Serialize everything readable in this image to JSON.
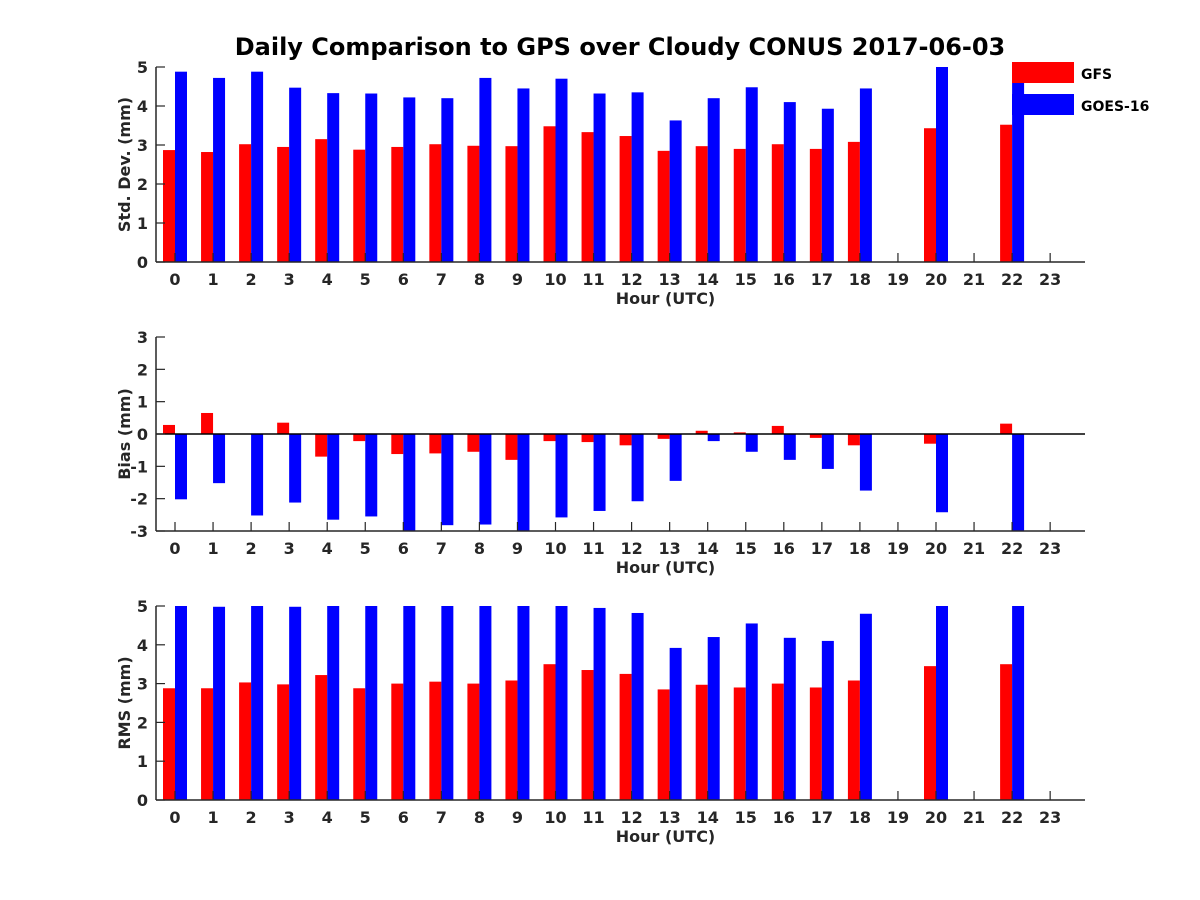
{
  "figure": {
    "title": "Daily Comparison to GPS over Cloudy CONUS 2017-06-03"
  },
  "legend": {
    "items": [
      {
        "label": "GFS",
        "color": "#ff0000"
      },
      {
        "label": "GOES-16",
        "color": "#0000ff"
      }
    ],
    "placement": "top-right"
  },
  "chart_data": [
    {
      "type": "bar",
      "ylabel": "Std. Dev. (mm)",
      "xlabel": "Hour (UTC)",
      "ylim": [
        0,
        5
      ],
      "yticks": [
        0,
        1,
        2,
        3,
        4,
        5
      ],
      "categories": [
        "0",
        "1",
        "2",
        "3",
        "4",
        "5",
        "6",
        "7",
        "8",
        "9",
        "10",
        "11",
        "12",
        "13",
        "14",
        "15",
        "16",
        "17",
        "18",
        "19",
        "20",
        "21",
        "22",
        "23"
      ],
      "grid": false,
      "series": [
        {
          "name": "GFS",
          "color": "#ff0000",
          "values": [
            2.87,
            2.82,
            3.02,
            2.95,
            3.15,
            2.88,
            2.95,
            3.02,
            2.98,
            2.97,
            3.48,
            3.33,
            3.23,
            2.85,
            2.97,
            2.9,
            3.02,
            2.9,
            3.08,
            null,
            3.43,
            null,
            3.52,
            null
          ]
        },
        {
          "name": "GOES-16",
          "color": "#0000ff",
          "values": [
            4.88,
            4.72,
            4.88,
            4.47,
            4.33,
            4.32,
            4.22,
            4.2,
            4.72,
            4.45,
            4.7,
            4.32,
            4.35,
            3.63,
            4.2,
            4.48,
            4.1,
            3.93,
            4.45,
            null,
            5.0,
            null,
            5.0,
            null
          ]
        }
      ]
    },
    {
      "type": "bar",
      "ylabel": "Bias (mm)",
      "xlabel": "Hour (UTC)",
      "ylim": [
        -3,
        3
      ],
      "yticks": [
        -3,
        -2,
        -1,
        0,
        1,
        2,
        3
      ],
      "categories": [
        "0",
        "1",
        "2",
        "3",
        "4",
        "5",
        "6",
        "7",
        "8",
        "9",
        "10",
        "11",
        "12",
        "13",
        "14",
        "15",
        "16",
        "17",
        "18",
        "19",
        "20",
        "21",
        "22",
        "23"
      ],
      "grid": false,
      "zero_line": true,
      "series": [
        {
          "name": "GFS",
          "color": "#ff0000",
          "values": [
            0.28,
            0.65,
            null,
            0.35,
            -0.7,
            -0.22,
            -0.62,
            -0.6,
            -0.55,
            -0.8,
            -0.22,
            -0.25,
            -0.35,
            -0.15,
            0.1,
            0.05,
            0.25,
            -0.12,
            -0.35,
            null,
            -0.3,
            null,
            0.32,
            null
          ]
        },
        {
          "name": "GOES-16",
          "color": "#0000ff",
          "values": [
            -2.02,
            -1.52,
            -2.52,
            -2.12,
            -2.65,
            -2.55,
            -3.0,
            -2.82,
            -2.8,
            -3.0,
            -2.58,
            -2.38,
            -2.08,
            -1.45,
            -0.22,
            -0.55,
            -0.8,
            -1.08,
            -1.75,
            null,
            -2.42,
            null,
            -3.0,
            null
          ]
        }
      ]
    },
    {
      "type": "bar",
      "ylabel": "RMS (mm)",
      "xlabel": "Hour (UTC)",
      "ylim": [
        0,
        5
      ],
      "yticks": [
        0,
        1,
        2,
        3,
        4,
        5
      ],
      "categories": [
        "0",
        "1",
        "2",
        "3",
        "4",
        "5",
        "6",
        "7",
        "8",
        "9",
        "10",
        "11",
        "12",
        "13",
        "14",
        "15",
        "16",
        "17",
        "18",
        "19",
        "20",
        "21",
        "22",
        "23"
      ],
      "grid": false,
      "series": [
        {
          "name": "GFS",
          "color": "#ff0000",
          "values": [
            2.88,
            2.88,
            3.03,
            2.98,
            3.22,
            2.88,
            3.0,
            3.05,
            3.0,
            3.08,
            3.5,
            3.35,
            3.25,
            2.85,
            2.97,
            2.9,
            3.0,
            2.9,
            3.08,
            null,
            3.45,
            null,
            3.5,
            null
          ]
        },
        {
          "name": "GOES-16",
          "color": "#0000ff",
          "values": [
            5.0,
            4.98,
            5.0,
            4.98,
            5.0,
            5.0,
            5.0,
            5.0,
            5.0,
            5.0,
            5.0,
            4.95,
            4.82,
            3.92,
            4.2,
            4.55,
            4.18,
            4.1,
            4.8,
            null,
            5.0,
            null,
            5.0,
            null
          ]
        }
      ]
    }
  ]
}
